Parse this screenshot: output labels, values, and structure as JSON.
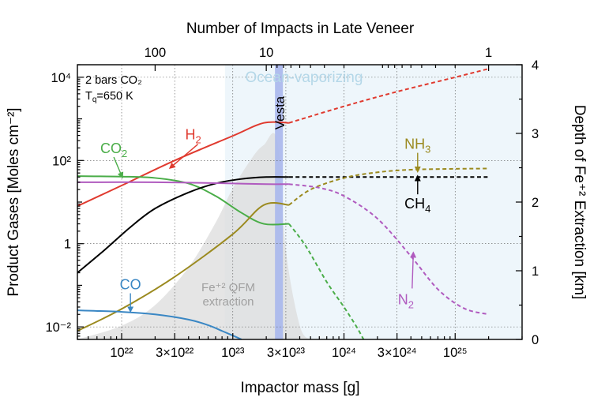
{
  "chart_data": {
    "type": "line",
    "title": "",
    "xlabel": "Impactor mass [g]",
    "ylabel": "Product Gases [Moles cm⁻²]",
    "y2label": "Depth of Fe⁺² Extraction [km]",
    "top_xlabel": "Number of Impacts in Late Veneer",
    "x_scale": "log",
    "y_scale": "log",
    "xlim": [
      4e+21,
      4e+25
    ],
    "ylim": [
      0.005,
      20000
    ],
    "y2lim": [
      0,
      4
    ],
    "x_ticks": [
      {
        "value": 1e+22,
        "label": "10²²"
      },
      {
        "value": 3e+22,
        "label": "3×10²²"
      },
      {
        "value": 1e+23,
        "label": "10²³"
      },
      {
        "value": 3e+23,
        "label": "3×10²³"
      },
      {
        "value": 1e+24,
        "label": "10²⁴"
      },
      {
        "value": 3e+24,
        "label": "3×10²⁴"
      },
      {
        "value": 1e+25,
        "label": "10²⁵"
      }
    ],
    "y_ticks": [
      {
        "value": 0.01,
        "label": "10⁻²"
      },
      {
        "value": 1,
        "label": "1"
      },
      {
        "value": 100,
        "label": "10²"
      },
      {
        "value": 10000,
        "label": "10⁴"
      }
    ],
    "y2_ticks": [
      "0",
      "1",
      "2",
      "3",
      "4"
    ],
    "top_ticks": [
      {
        "mass": 2e+22,
        "label": "100"
      },
      {
        "mass": 2e+23,
        "label": "10"
      },
      {
        "mass": 2e+25,
        "label": "1"
      }
    ],
    "grid": true,
    "annotations": {
      "conditions_line1": "2 bars CO₂",
      "conditions_line2": "T",
      "conditions_line2_sub": "q",
      "conditions_line2_rest": "=650 K",
      "ocean_label": "Ocean-vaporizing",
      "vesta_label": "Vesta",
      "qfm_line1": "Fe⁺² QFM",
      "qfm_line2": "extraction"
    },
    "vesta_mass": 2.6e+23,
    "ocean_region_start": 8.5e+22,
    "extraction_depth_km": {
      "mass": [
        4e+21,
        1e+22,
        2e+22,
        4e+22,
        7e+22,
        1e+23,
        1.5e+23,
        1.9e+23,
        2.5e+23,
        3e+23,
        4e+23,
        5e+23
      ],
      "depth": [
        0.0,
        0.2,
        0.5,
        1.05,
        1.7,
        2.2,
        2.65,
        2.83,
        2.9,
        1.3,
        0.2,
        0.0
      ]
    },
    "series": [
      {
        "name": "H₂",
        "color": "#e03a2f",
        "x": [
          4e+21,
          1e+22,
          3e+22,
          1e+23,
          1.9e+23,
          3.2e+23
        ],
        "y": [
          8,
          25,
          100,
          390,
          800,
          800
        ],
        "x_dashed": [
          3.2e+23,
          1e+24,
          3e+24,
          1e+25,
          2e+25
        ],
        "y_dashed": [
          800,
          2000,
          4500,
          10000,
          16000
        ]
      },
      {
        "name": "CO₂",
        "color": "#4aad48",
        "x": [
          4e+21,
          1e+22,
          2e+22,
          4e+22,
          7e+22,
          1.2e+23,
          1.9e+23,
          3.2e+23
        ],
        "y": [
          42,
          41,
          38,
          28,
          14,
          5.5,
          3.0,
          3.0
        ],
        "x_dashed": [
          3.2e+23,
          4.5e+23,
          7e+23,
          1e+24,
          1.3e+24,
          1.5e+24
        ],
        "y_dashed": [
          3.0,
          0.9,
          0.12,
          0.03,
          0.01,
          0.005
        ]
      },
      {
        "name": "CH₄",
        "color": "#000000",
        "x": [
          4e+21,
          7e+21,
          1.2e+22,
          2e+22,
          4e+22,
          7e+22,
          1.2e+23,
          2e+23,
          3.2e+23
        ],
        "y": [
          0.2,
          0.7,
          2.5,
          7,
          17,
          28,
          36,
          40,
          40
        ],
        "x_dashed": [
          3.2e+23,
          1e+24,
          1e+25,
          2e+25
        ],
        "y_dashed": [
          40,
          40,
          40,
          40
        ]
      },
      {
        "name": "NH₃",
        "color": "#9b8a1f",
        "x": [
          4e+21,
          1e+22,
          3e+22,
          1e+23,
          1.9e+23,
          3.2e+23
        ],
        "y": [
          0.008,
          0.027,
          0.16,
          1.7,
          8.5,
          8.5
        ],
        "x_dashed": [
          3.2e+23,
          5e+23,
          1e+24,
          2e+24,
          4e+24,
          1e+25,
          2e+25
        ],
        "y_dashed": [
          8.5,
          20,
          38,
          52,
          60,
          63,
          64
        ]
      },
      {
        "name": "N₂",
        "color": "#b05bbf",
        "x": [
          4e+21,
          2e+22,
          5e+22,
          1e+23,
          2e+23,
          3.2e+23
        ],
        "y": [
          30,
          30,
          29,
          28,
          27,
          27
        ],
        "x_dashed": [
          3.2e+23,
          6e+23,
          1e+24,
          2e+24,
          4e+24,
          7e+24,
          1.2e+25,
          2e+25
        ],
        "y_dashed": [
          27,
          22,
          14,
          4,
          0.5,
          0.08,
          0.028,
          0.02
        ]
      },
      {
        "name": "CO",
        "color": "#3a87c4",
        "x": [
          4e+21,
          1e+22,
          2e+22,
          4e+22,
          6e+22,
          8e+22,
          1e+23,
          1.2e+23
        ],
        "y": [
          0.025,
          0.023,
          0.02,
          0.015,
          0.011,
          0.008,
          0.0062,
          0.005
        ],
        "x_dashed": [],
        "y_dashed": []
      }
    ],
    "series_label_positions": {
      "H₂": {
        "x": 4.4e+22,
        "y": 320
      },
      "CO₂": {
        "x": 8.5e+21,
        "y": 150
      },
      "NH₃": {
        "x": 4.6e+24,
        "y": 190
      },
      "CH₄": {
        "x": 4.6e+24,
        "y": 7
      },
      "N₂": {
        "x": 3.6e+24,
        "y": 0.035
      },
      "CO": {
        "x": 1.2e+22,
        "y": 0.08
      }
    }
  }
}
